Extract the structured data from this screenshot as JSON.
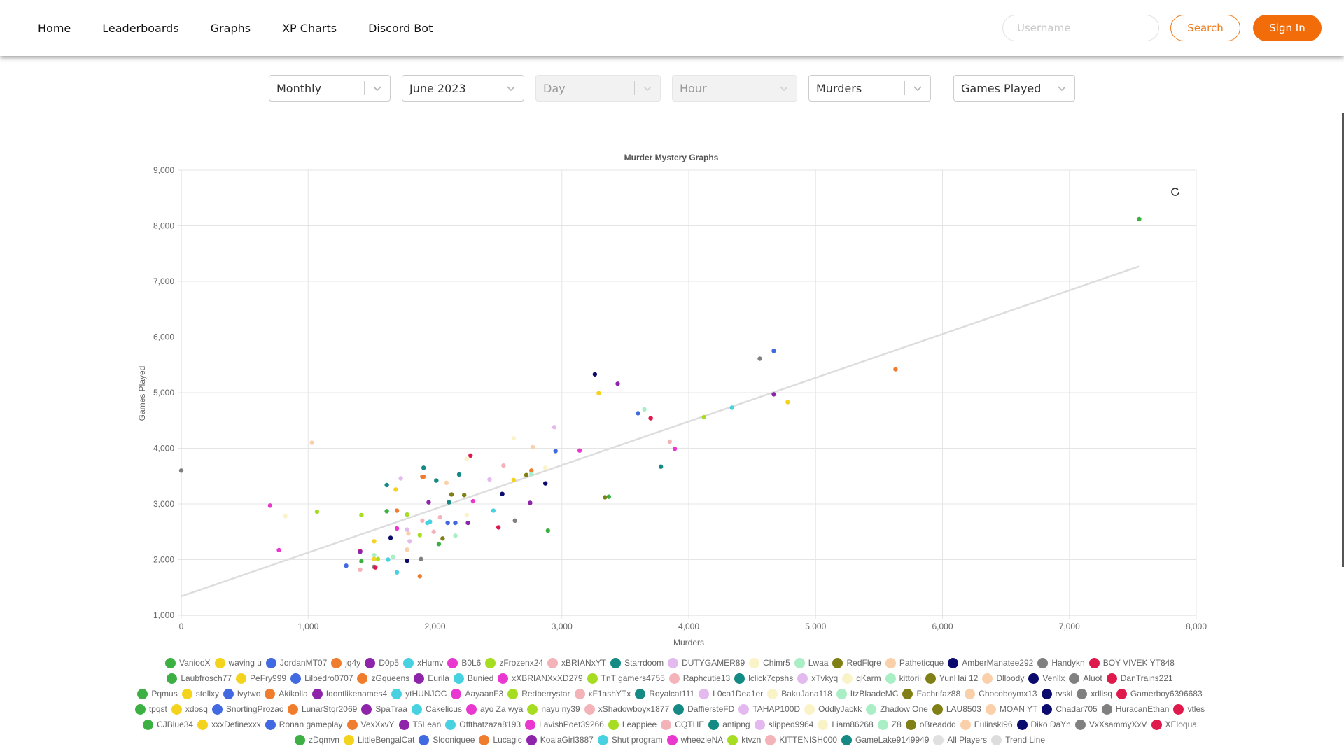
{
  "nav": {
    "links": [
      "Home",
      "Leaderboards",
      "Graphs",
      "XP Charts",
      "Discord Bot"
    ],
    "username_placeholder": "Username",
    "search_label": "Search",
    "signin_label": "Sign In"
  },
  "filters": [
    {
      "value": "Monthly",
      "disabled": false
    },
    {
      "value": "June 2023",
      "disabled": false
    },
    {
      "value": "Day",
      "disabled": true
    },
    {
      "value": "Hour",
      "disabled": true
    },
    {
      "value": "Murders",
      "disabled": false
    },
    {
      "value": "Games Played",
      "disabled": false
    }
  ],
  "chart_data": {
    "type": "scatter",
    "title": "Murder Mystery Graphs",
    "xlabel": "Murders",
    "ylabel": "Games Played",
    "xlim": [
      0,
      8000
    ],
    "ylim": [
      1000,
      9000
    ],
    "x_ticks": [
      "0",
      "1,000",
      "2,000",
      "3,000",
      "4,000",
      "5,000",
      "6,000",
      "7,000",
      "8,000"
    ],
    "y_ticks": [
      "1,000",
      "2,000",
      "3,000",
      "4,000",
      "5,000",
      "6,000",
      "7,000",
      "8,000",
      "9,000"
    ],
    "grid": true,
    "legend_position": "bottom",
    "trend_line": {
      "name": "Trend Line",
      "x": [
        0,
        7550
      ],
      "y": [
        1340,
        7270
      ],
      "color": "#dddddd"
    },
    "series": [
      {
        "name": "VaniooX",
        "color": "#3cb043",
        "points": [
          [
            7550,
            8120
          ]
        ]
      },
      {
        "name": "waving u",
        "color": "#f3d31b",
        "points": [
          [
            4780,
            4830
          ]
        ]
      },
      {
        "name": "JordanMT07",
        "color": "#4169e1",
        "points": [
          [
            4670,
            5750
          ]
        ]
      },
      {
        "name": "jq4y",
        "color": "#f07c2e",
        "points": [
          [
            5630,
            5420
          ]
        ]
      },
      {
        "name": "D0p5",
        "color": "#8e24aa",
        "points": [
          [
            4670,
            4970
          ]
        ]
      },
      {
        "name": "xHumv",
        "color": "#48d1e0",
        "points": [
          [
            4340,
            4730
          ]
        ]
      },
      {
        "name": "B0L6",
        "color": "#e838cf",
        "points": [
          [
            3890,
            3990
          ]
        ]
      },
      {
        "name": "zFrozenx24",
        "color": "#a6dc22",
        "points": [
          [
            4120,
            4560
          ]
        ]
      },
      {
        "name": "xBRIANxYT",
        "color": "#f4b3b8",
        "points": [
          [
            3850,
            4120
          ]
        ]
      },
      {
        "name": "Starrdoom",
        "color": "#158a84",
        "points": [
          [
            3780,
            3670
          ]
        ]
      },
      {
        "name": "DUTYGAMER89",
        "color": "#e3b9ef",
        "points": [
          [
            2940,
            4380
          ]
        ]
      },
      {
        "name": "Chimr5",
        "color": "#fbf3c8",
        "points": [
          [
            2620,
            4180
          ]
        ]
      },
      {
        "name": "Lwaa",
        "color": "#aaeec5",
        "points": [
          [
            3650,
            4700
          ]
        ]
      },
      {
        "name": "RedFlqre",
        "color": "#7f7f16",
        "points": [
          [
            3340,
            3120
          ]
        ]
      },
      {
        "name": "Patheticque",
        "color": "#fad0aa",
        "points": [
          [
            1030,
            4100
          ]
        ]
      },
      {
        "name": "AmberManatee292",
        "color": "#0b0b6e",
        "points": [
          [
            3260,
            5330
          ]
        ]
      },
      {
        "name": "Handykn",
        "color": "#808080",
        "points": [
          [
            4560,
            5610
          ]
        ]
      },
      {
        "name": "BOY VIVEK YT848",
        "color": "#e0194c",
        "points": [
          [
            3700,
            4540
          ]
        ]
      },
      {
        "name": "Laubfrosch77",
        "color": "#3cb043",
        "points": [
          [
            3370,
            3130
          ]
        ]
      },
      {
        "name": "PeFry999",
        "color": "#f3d31b",
        "points": [
          [
            3290,
            4990
          ]
        ]
      },
      {
        "name": "Lilpedro0707",
        "color": "#4169e1",
        "points": [
          [
            3600,
            4630
          ]
        ]
      },
      {
        "name": "zGqueens",
        "color": "#f07c2e",
        "points": [
          [
            2760,
            3600
          ]
        ]
      },
      {
        "name": "Eurila",
        "color": "#8e24aa",
        "points": [
          [
            3440,
            5160
          ]
        ]
      },
      {
        "name": "Bunied",
        "color": "#48d1e0",
        "points": [
          [
            2460,
            2880
          ]
        ]
      },
      {
        "name": "xXBRIANXxXD279",
        "color": "#e838cf",
        "points": [
          [
            3140,
            3960
          ]
        ]
      },
      {
        "name": "TnT gamers4755",
        "color": "#a6dc22",
        "points": [
          [
            1070,
            2860
          ]
        ]
      },
      {
        "name": "Raphcutie13",
        "color": "#f4b3b8",
        "points": [
          [
            2540,
            3690
          ]
        ]
      },
      {
        "name": "lclick7cpshs",
        "color": "#158a84",
        "points": [
          [
            2190,
            3530
          ]
        ]
      },
      {
        "name": "xTvkyq",
        "color": "#e3b9ef",
        "points": [
          [
            2430,
            3440
          ]
        ]
      },
      {
        "name": "qKarm",
        "color": "#fbf3c8",
        "points": [
          [
            820,
            2780
          ]
        ]
      },
      {
        "name": "kittorii",
        "color": "#aaeec5",
        "points": [
          [
            2760,
            3540
          ]
        ]
      },
      {
        "name": "YunHai 12",
        "color": "#7f7f16",
        "points": [
          [
            2720,
            3520
          ]
        ]
      },
      {
        "name": "Dlloody",
        "color": "#fad0aa",
        "points": [
          [
            2770,
            4020
          ]
        ]
      },
      {
        "name": "Venllx",
        "color": "#0b0b6e",
        "points": [
          [
            2870,
            3370
          ]
        ]
      },
      {
        "name": "Aluot",
        "color": "#808080",
        "points": [
          [
            2630,
            2700
          ]
        ]
      },
      {
        "name": "DanTrains221",
        "color": "#e0194c",
        "points": [
          [
            2500,
            2580
          ]
        ]
      },
      {
        "name": "Pqmus",
        "color": "#3cb043",
        "points": [
          [
            2030,
            2280
          ]
        ]
      },
      {
        "name": "stellxy",
        "color": "#f3d31b",
        "points": [
          [
            2620,
            3430
          ]
        ]
      },
      {
        "name": "lvytwo",
        "color": "#4169e1",
        "points": [
          [
            2100,
            2660
          ]
        ]
      },
      {
        "name": "Akikolla",
        "color": "#f07c2e",
        "points": [
          [
            1700,
            2880
          ]
        ]
      },
      {
        "name": "Idontlikenames4",
        "color": "#8e24aa",
        "points": [
          [
            2260,
            2660
          ]
        ]
      },
      {
        "name": "ytHUNJOC",
        "color": "#48d1e0",
        "points": [
          [
            1960,
            2680
          ]
        ]
      },
      {
        "name": "AayaanF3",
        "color": "#e838cf",
        "points": [
          [
            2300,
            3050
          ]
        ]
      },
      {
        "name": "Redberrystar",
        "color": "#a6dc22",
        "points": [
          [
            1420,
            2800
          ]
        ]
      },
      {
        "name": "xF1ashYTx",
        "color": "#f4b3b8",
        "points": [
          [
            1900,
            2700
          ]
        ]
      },
      {
        "name": "Royalcat111",
        "color": "#158a84",
        "points": [
          [
            1910,
            3650
          ]
        ]
      },
      {
        "name": "L0ca1Dea1er",
        "color": "#e3b9ef",
        "points": [
          [
            1730,
            3460
          ]
        ]
      },
      {
        "name": "BakuJana118",
        "color": "#fbf3c8",
        "points": [
          [
            2870,
            3650
          ]
        ]
      },
      {
        "name": "ItzBlaadeMC",
        "color": "#aaeec5",
        "points": [
          [
            1670,
            2050
          ]
        ]
      },
      {
        "name": "Fachrifaz88",
        "color": "#7f7f16",
        "points": [
          [
            2060,
            2380
          ]
        ]
      },
      {
        "name": "Chocoboymx13",
        "color": "#fad0aa",
        "points": [
          [
            1790,
            2470
          ]
        ]
      },
      {
        "name": "rvskl",
        "color": "#0b0b6e",
        "points": [
          [
            2530,
            3180
          ]
        ]
      },
      {
        "name": "xdlisq",
        "color": "#808080",
        "points": [
          [
            0,
            3600
          ]
        ]
      },
      {
        "name": "Gamerboy6396683",
        "color": "#e0194c",
        "points": [
          [
            2280,
            3870
          ]
        ]
      },
      {
        "name": "tpqst",
        "color": "#3cb043",
        "points": [
          [
            1620,
            2870
          ]
        ]
      },
      {
        "name": "xdosq",
        "color": "#f3d31b",
        "points": [
          [
            1690,
            3260
          ]
        ]
      },
      {
        "name": "SnortingProzac",
        "color": "#4169e1",
        "points": [
          [
            1300,
            1890
          ]
        ]
      },
      {
        "name": "LunarStqr2069",
        "color": "#f07c2e",
        "points": [
          [
            1900,
            3490
          ]
        ]
      },
      {
        "name": "SpaTraa",
        "color": "#8e24aa",
        "points": [
          [
            2750,
            3020
          ]
        ]
      },
      {
        "name": "Cakelicus",
        "color": "#48d1e0",
        "points": [
          [
            1700,
            1770
          ]
        ]
      },
      {
        "name": "ayo Za wya",
        "color": "#e838cf",
        "points": [
          [
            700,
            2970
          ]
        ]
      },
      {
        "name": "nayu ny39",
        "color": "#a6dc22",
        "points": [
          [
            1780,
            2810
          ]
        ]
      },
      {
        "name": "xShadowboyx1877",
        "color": "#f4b3b8",
        "points": [
          [
            1410,
            1820
          ]
        ]
      },
      {
        "name": "DaffiersteFD",
        "color": "#158a84",
        "points": [
          [
            1620,
            3340
          ]
        ]
      },
      {
        "name": "TAHAP100D",
        "color": "#e3b9ef",
        "points": [
          [
            1800,
            2330
          ]
        ]
      },
      {
        "name": "OddlyJackk",
        "color": "#fbf3c8",
        "points": [
          [
            2250,
            2800
          ]
        ]
      },
      {
        "name": "Zhadow One",
        "color": "#aaeec5",
        "points": [
          [
            2160,
            2430
          ]
        ]
      },
      {
        "name": "LAU8503",
        "color": "#7f7f16",
        "points": [
          [
            2230,
            3160
          ]
        ]
      },
      {
        "name": "MOAN YT",
        "color": "#fad0aa",
        "points": [
          [
            1780,
            2180
          ]
        ]
      },
      {
        "name": "Chadar705",
        "color": "#0b0b6e",
        "points": [
          [
            1780,
            1980
          ]
        ]
      },
      {
        "name": "HuracanEthan",
        "color": "#808080",
        "points": [
          [
            1890,
            2010
          ]
        ]
      },
      {
        "name": "vtles",
        "color": "#e0194c",
        "points": [
          [
            1410,
            2150
          ]
        ]
      },
      {
        "name": "CJBlue34",
        "color": "#3cb043",
        "points": [
          [
            2890,
            2520
          ]
        ]
      },
      {
        "name": "xxxDefinexxx",
        "color": "#f3d31b",
        "points": [
          [
            1520,
            2330
          ]
        ]
      },
      {
        "name": "Ronan gameplay",
        "color": "#4169e1",
        "points": [
          [
            2950,
            3950
          ]
        ]
      },
      {
        "name": "VexXxvY",
        "color": "#f07c2e",
        "points": [
          [
            1880,
            1700
          ]
        ]
      },
      {
        "name": "T5Lean",
        "color": "#8e24aa",
        "points": [
          [
            1950,
            3030
          ]
        ]
      },
      {
        "name": "Offthatzaza8193",
        "color": "#48d1e0",
        "points": [
          [
            1940,
            2660
          ]
        ]
      },
      {
        "name": "LavishPoet39266",
        "color": "#e838cf",
        "points": [
          [
            770,
            2170
          ]
        ]
      },
      {
        "name": "Leappiee",
        "color": "#a6dc22",
        "points": [
          [
            1550,
            2010
          ]
        ]
      },
      {
        "name": "CQTHE",
        "color": "#f4b3b8",
        "points": [
          [
            2040,
            2760
          ]
        ]
      },
      {
        "name": "antipng",
        "color": "#158a84",
        "points": [
          [
            2110,
            3030
          ]
        ]
      },
      {
        "name": "slipped9964",
        "color": "#e3b9ef",
        "points": [
          [
            1780,
            2540
          ]
        ]
      },
      {
        "name": "Liam86268",
        "color": "#fbf3c8",
        "points": [
          [
            2250,
            3810
          ]
        ]
      },
      {
        "name": "Z8",
        "color": "#aaeec5",
        "points": [
          [
            1520,
            2080
          ]
        ]
      },
      {
        "name": "oBreaddd",
        "color": "#7f7f16",
        "points": [
          [
            2130,
            3170
          ]
        ]
      },
      {
        "name": "Eulinski96",
        "color": "#fad0aa",
        "points": [
          [
            2090,
            3380
          ]
        ]
      },
      {
        "name": "Diko DaYn",
        "color": "#0b0b6e",
        "points": [
          [
            1650,
            2390
          ]
        ]
      },
      {
        "name": "VxXsammyXxV",
        "color": "#808080",
        "points": [
          [
            1520,
            1870
          ]
        ]
      },
      {
        "name": "XEloqua",
        "color": "#e0194c",
        "points": [
          [
            1530,
            1860
          ]
        ]
      },
      {
        "name": "zDqmvn",
        "color": "#3cb043",
        "points": [
          [
            1420,
            1970
          ]
        ]
      },
      {
        "name": "LittleBengalCat",
        "color": "#f3d31b",
        "points": [
          [
            1520,
            2010
          ]
        ]
      },
      {
        "name": "Slooniquee",
        "color": "#4169e1",
        "points": [
          [
            2160,
            2660
          ]
        ]
      },
      {
        "name": "Lucagic",
        "color": "#f07c2e",
        "points": [
          [
            1910,
            3490
          ]
        ]
      },
      {
        "name": "KoalaGirl3887",
        "color": "#8e24aa",
        "points": [
          [
            1410,
            2140
          ]
        ]
      },
      {
        "name": "Shut program",
        "color": "#48d1e0",
        "points": [
          [
            1630,
            2000
          ]
        ]
      },
      {
        "name": "wheezieNA",
        "color": "#e838cf",
        "points": [
          [
            1700,
            2560
          ]
        ]
      },
      {
        "name": "ktvzn",
        "color": "#a6dc22",
        "points": [
          [
            1880,
            2440
          ]
        ]
      },
      {
        "name": "KITTENISH000",
        "color": "#f4b3b8",
        "points": [
          [
            1990,
            2500
          ]
        ]
      },
      {
        "name": "GameLake9149949",
        "color": "#158a84",
        "points": [
          [
            2010,
            3420
          ]
        ]
      },
      {
        "name": "All Players",
        "color": "#e0e0e0",
        "points": []
      }
    ]
  }
}
